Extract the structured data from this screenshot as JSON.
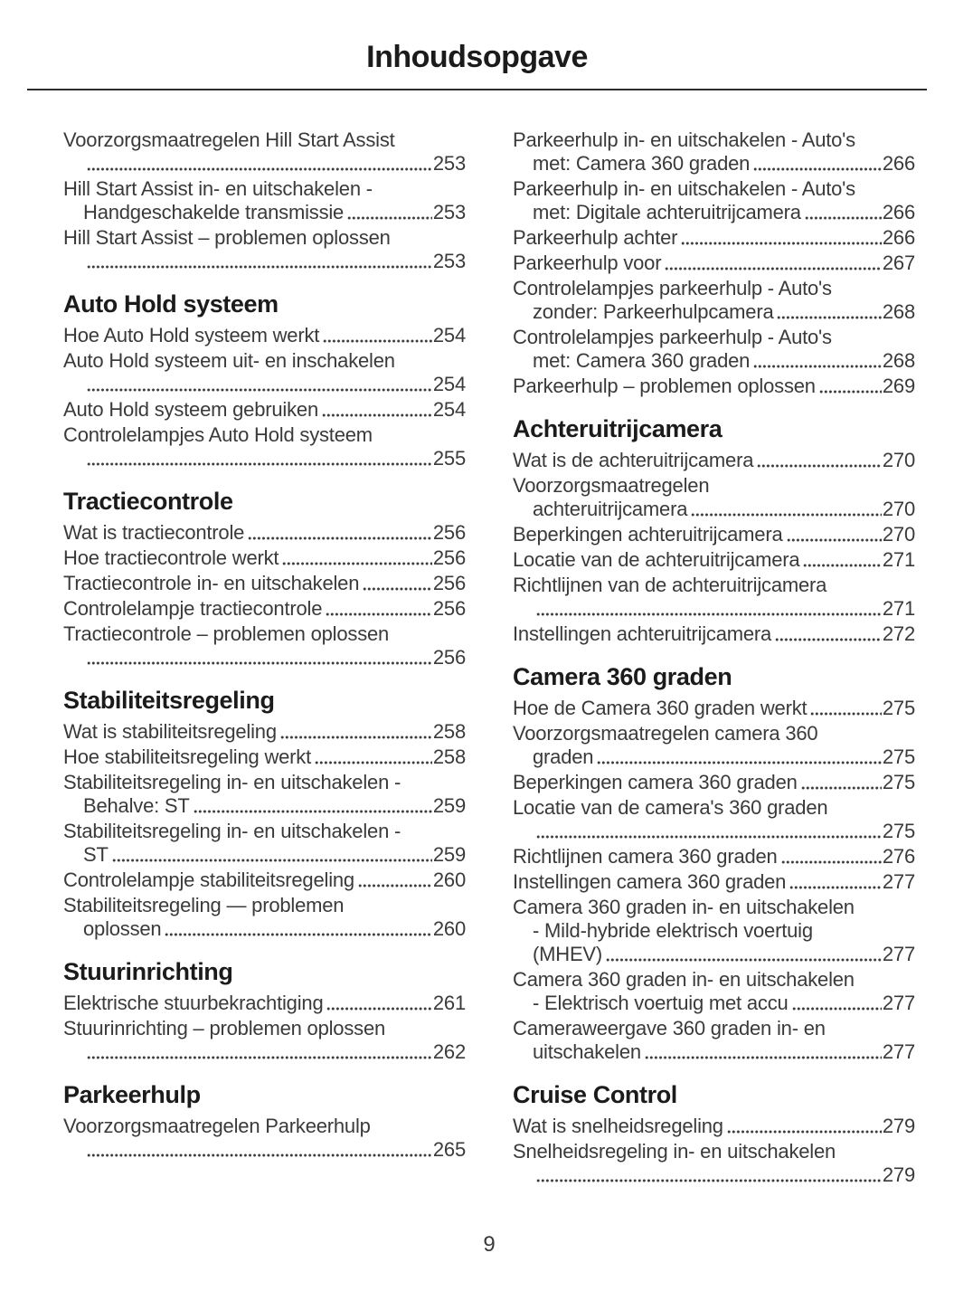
{
  "page": {
    "title": "Inhoudsopgave",
    "page_number": "9",
    "colors": {
      "heading": "#1b1b1b",
      "body": "#3a3a3a",
      "rule": "#2b2b2b"
    }
  },
  "toc": {
    "columns": [
      {
        "sections": [
          {
            "heading": null,
            "entries": [
              {
                "pre": [
                  "Voorzorgsmaatregelen Hill Start Assist"
                ],
                "last": "",
                "page": "253"
              },
              {
                "pre": [
                  "Hill Start Assist in- en uitschakelen -"
                ],
                "last": "Handgeschakelde transmissie",
                "page": "253"
              },
              {
                "pre": [
                  "Hill Start Assist – problemen oplossen"
                ],
                "last": "",
                "page": "253"
              }
            ]
          },
          {
            "heading": "Auto Hold systeem",
            "entries": [
              {
                "pre": [],
                "last": "Hoe Auto Hold systeem werkt",
                "page": "254"
              },
              {
                "pre": [
                  "Auto Hold systeem uit- en inschakelen"
                ],
                "last": "",
                "page": "254"
              },
              {
                "pre": [],
                "last": "Auto Hold systeem gebruiken",
                "page": "254"
              },
              {
                "pre": [
                  "Controlelampjes Auto Hold systeem"
                ],
                "last": "",
                "page": "255"
              }
            ]
          },
          {
            "heading": "Tractiecontrole",
            "entries": [
              {
                "pre": [],
                "last": "Wat is tractiecontrole",
                "page": "256"
              },
              {
                "pre": [],
                "last": "Hoe tractiecontrole werkt",
                "page": "256"
              },
              {
                "pre": [],
                "last": "Tractiecontrole in- en uitschakelen",
                "page": "256"
              },
              {
                "pre": [],
                "last": "Controlelampje tractiecontrole",
                "page": "256"
              },
              {
                "pre": [
                  "Tractiecontrole – problemen oplossen"
                ],
                "last": "",
                "page": "256"
              }
            ]
          },
          {
            "heading": "Stabiliteitsregeling",
            "entries": [
              {
                "pre": [],
                "last": "Wat is stabiliteitsregeling",
                "page": "258"
              },
              {
                "pre": [],
                "last": "Hoe stabiliteitsregeling werkt",
                "page": "258"
              },
              {
                "pre": [
                  "Stabiliteitsregeling in- en uitschakelen -"
                ],
                "last": "Behalve: ST",
                "page": "259"
              },
              {
                "pre": [
                  "Stabiliteitsregeling in- en uitschakelen -"
                ],
                "last": "ST",
                "page": "259"
              },
              {
                "pre": [],
                "last": "Controlelampje stabiliteitsregeling",
                "page": "260"
              },
              {
                "pre": [
                  "Stabiliteitsregeling — problemen"
                ],
                "last": "oplossen",
                "page": "260"
              }
            ]
          },
          {
            "heading": "Stuurinrichting",
            "entries": [
              {
                "pre": [],
                "last": "Elektrische stuurbekrachtiging",
                "page": "261"
              },
              {
                "pre": [
                  "Stuurinrichting – problemen oplossen"
                ],
                "last": "",
                "page": "262"
              }
            ]
          },
          {
            "heading": "Parkeerhulp",
            "entries": [
              {
                "pre": [
                  "Voorzorgsmaatregelen Parkeerhulp"
                ],
                "last": "",
                "page": "265"
              }
            ]
          }
        ]
      },
      {
        "sections": [
          {
            "heading": null,
            "entries": [
              {
                "pre": [
                  "Parkeerhulp in- en uitschakelen - Auto's"
                ],
                "last": "met: Camera 360 graden",
                "page": "266"
              },
              {
                "pre": [
                  "Parkeerhulp in- en uitschakelen - Auto's"
                ],
                "last": "met: Digitale achteruitrijcamera",
                "page": "266"
              },
              {
                "pre": [],
                "last": "Parkeerhulp achter",
                "page": "266"
              },
              {
                "pre": [],
                "last": "Parkeerhulp voor",
                "page": "267"
              },
              {
                "pre": [
                  "Controlelampjes parkeerhulp - Auto's"
                ],
                "last": "zonder: Parkeerhulpcamera",
                "page": "268"
              },
              {
                "pre": [
                  "Controlelampjes parkeerhulp - Auto's"
                ],
                "last": "met: Camera 360 graden",
                "page": "268"
              },
              {
                "pre": [],
                "last": "Parkeerhulp – problemen oplossen",
                "page": "269"
              }
            ]
          },
          {
            "heading": "Achteruitrijcamera",
            "entries": [
              {
                "pre": [],
                "last": "Wat is de achteruitrijcamera",
                "page": "270"
              },
              {
                "pre": [
                  "Voorzorgsmaatregelen"
                ],
                "last": "achteruitrijcamera",
                "page": "270"
              },
              {
                "pre": [],
                "last": "Beperkingen achteruitrijcamera",
                "page": "270"
              },
              {
                "pre": [],
                "last": "Locatie van de achteruitrijcamera",
                "page": "271"
              },
              {
                "pre": [
                  "Richtlijnen van de achteruitrijcamera"
                ],
                "last": "",
                "page": "271"
              },
              {
                "pre": [],
                "last": "Instellingen achteruitrijcamera",
                "page": "272"
              }
            ]
          },
          {
            "heading": "Camera 360 graden",
            "entries": [
              {
                "pre": [],
                "last": "Hoe de Camera 360 graden werkt",
                "page": "275"
              },
              {
                "pre": [
                  "Voorzorgsmaatregelen camera 360"
                ],
                "last": "graden",
                "page": "275"
              },
              {
                "pre": [],
                "last": "Beperkingen camera 360 graden",
                "page": "275"
              },
              {
                "pre": [
                  "Locatie van de camera's 360 graden"
                ],
                "last": "",
                "page": "275"
              },
              {
                "pre": [],
                "last": "Richtlijnen camera 360 graden",
                "page": "276"
              },
              {
                "pre": [],
                "last": "Instellingen camera 360 graden",
                "page": "277"
              },
              {
                "pre": [
                  "Camera 360 graden in- en uitschakelen",
                  "- Mild-hybride elektrisch voertuig"
                ],
                "last": "(MHEV)",
                "page": "277"
              },
              {
                "pre": [
                  "Camera 360 graden in- en uitschakelen"
                ],
                "last": "- Elektrisch voertuig met accu",
                "page": "277"
              },
              {
                "pre": [
                  "Cameraweergave 360 graden in- en"
                ],
                "last": "uitschakelen",
                "page": "277"
              }
            ]
          },
          {
            "heading": "Cruise Control",
            "entries": [
              {
                "pre": [],
                "last": "Wat is snelheidsregeling",
                "page": "279"
              },
              {
                "pre": [
                  "Snelheidsregeling in- en uitschakelen"
                ],
                "last": "",
                "page": "279"
              }
            ]
          }
        ]
      }
    ]
  }
}
